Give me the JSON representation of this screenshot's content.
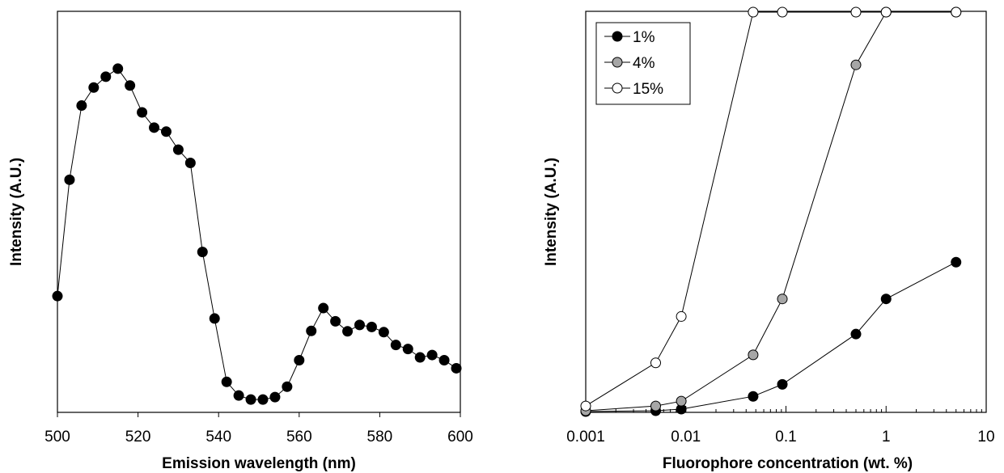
{
  "chart_data": [
    {
      "type": "line",
      "title": "",
      "xlabel": "Emission wavelength (nm)",
      "ylabel": "Intensity (A.U.)",
      "xlim": [
        500,
        600
      ],
      "ylim": [
        0,
        1
      ],
      "xticks": [
        "500",
        "520",
        "540",
        "560",
        "580",
        "600"
      ],
      "grid": false,
      "series": [
        {
          "color": "#000000",
          "marker": "filled-circle",
          "x": [
            500,
            503,
            506,
            509,
            512,
            515,
            518,
            521,
            524,
            527,
            530,
            533,
            536,
            539,
            542,
            545,
            548,
            551,
            554,
            557,
            560,
            563,
            566,
            569,
            572,
            575,
            578,
            581,
            584,
            587,
            590,
            593,
            596,
            599
          ],
          "y": [
            0.29,
            0.58,
            0.765,
            0.81,
            0.837,
            0.857,
            0.815,
            0.748,
            0.71,
            0.7,
            0.655,
            0.622,
            0.4,
            0.234,
            0.076,
            0.042,
            0.032,
            0.032,
            0.038,
            0.064,
            0.13,
            0.203,
            0.26,
            0.227,
            0.202,
            0.218,
            0.213,
            0.2,
            0.168,
            0.158,
            0.137,
            0.143,
            0.13,
            0.11
          ]
        }
      ]
    },
    {
      "type": "line",
      "title": "",
      "xlabel": "Fluorophore concentration (wt. %)",
      "ylabel": "Intensity (A.U.)",
      "xscale": "log",
      "xlim": [
        0.001,
        10
      ],
      "ylim": [
        0,
        1
      ],
      "xticks": [
        "0.001",
        "0.01",
        "0.1",
        "1",
        "10"
      ],
      "grid": false,
      "legend": "top-left",
      "series": [
        {
          "name": "1%",
          "color": "#000000",
          "marker": "filled-circle",
          "x": [
            0.001,
            0.005,
            0.009,
            0.047,
            0.092,
            0.5,
            1,
            5
          ],
          "y": [
            0.0,
            0.002,
            0.006,
            0.038,
            0.068,
            0.194,
            0.282,
            0.374
          ]
        },
        {
          "name": "4%",
          "color": "#aaaaaa",
          "marker": "gray-circle",
          "x": [
            0.001,
            0.005,
            0.009,
            0.047,
            0.092,
            0.5,
            1,
            5
          ],
          "y": [
            0.002,
            0.014,
            0.026,
            0.142,
            0.282,
            0.868,
            1.0,
            1.0
          ]
        },
        {
          "name": "15%",
          "color": "#ffffff",
          "marker": "open-circle",
          "x": [
            0.001,
            0.005,
            0.009,
            0.047,
            0.092,
            0.5,
            1,
            5
          ],
          "y": [
            0.014,
            0.122,
            0.238,
            1.0,
            1.0,
            1.0,
            1.0,
            1.0
          ]
        }
      ]
    }
  ]
}
